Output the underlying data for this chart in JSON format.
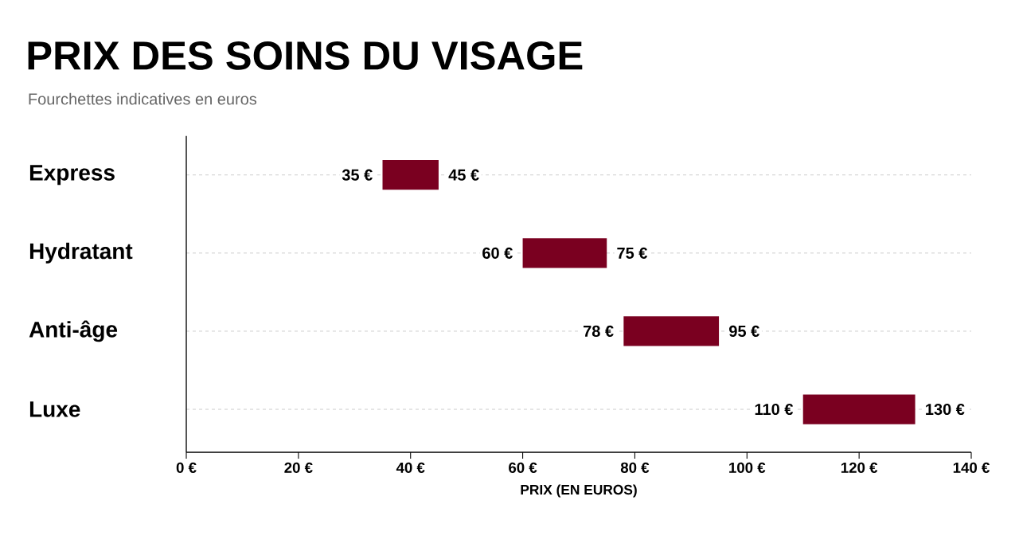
{
  "chart_data": {
    "type": "bar",
    "orientation": "horizontal",
    "title": "PRIX DES SOINS DU VISAGE",
    "subtitle": "Fourchettes indicatives en euros",
    "xlabel": "PRIX (EN EUROS)",
    "categories": [
      "Express",
      "Hydratant",
      "Anti-âge",
      "Luxe"
    ],
    "base": [
      35,
      60,
      78,
      110
    ],
    "values": [
      10,
      15,
      17,
      20
    ],
    "color": "#7a0020",
    "xlim": [
      0,
      140
    ],
    "xticks": [
      {
        "value": 0,
        "label": "0 €"
      },
      {
        "value": 20,
        "label": "20 €"
      },
      {
        "value": 40,
        "label": "40 €"
      },
      {
        "value": 60,
        "label": "60 €"
      },
      {
        "value": 80,
        "label": "80 €"
      },
      {
        "value": 100,
        "label": "100 €"
      },
      {
        "value": 120,
        "label": "120 €"
      },
      {
        "value": 140,
        "label": "140 €"
      }
    ],
    "grid": "y",
    "annotations": [
      {
        "text": "35 €",
        "x": 35,
        "y": "Express"
      },
      {
        "text": "45 €",
        "x": 45,
        "y": "Express"
      },
      {
        "text": "60 €",
        "x": 60,
        "y": "Hydratant"
      },
      {
        "text": "75 €",
        "x": 75,
        "y": "Hydratant"
      },
      {
        "text": "78 €",
        "x": 78,
        "y": "Anti-âge"
      },
      {
        "text": "95 €",
        "x": 95,
        "y": "Anti-âge"
      },
      {
        "text": "110 €",
        "x": 110,
        "y": "Luxe"
      },
      {
        "text": "130 €",
        "x": 130,
        "y": "Luxe"
      }
    ]
  }
}
